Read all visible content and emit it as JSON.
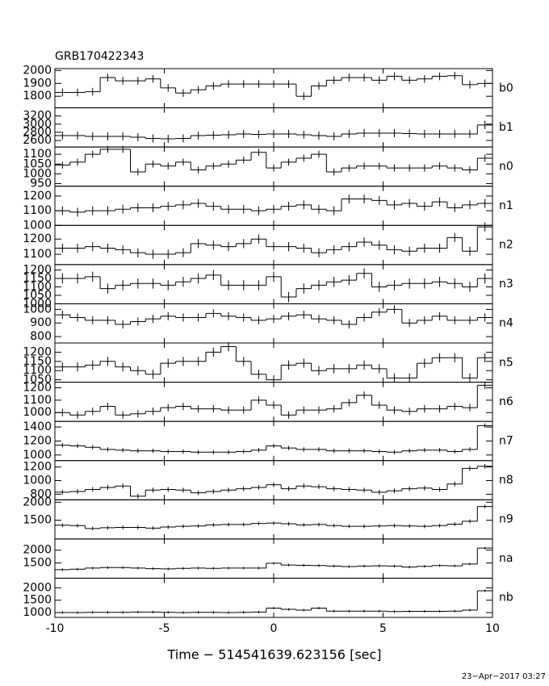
{
  "chart_data": {
    "type": "step",
    "title": "GRB170422343",
    "x_label": "Time − 514541639.623156 [sec]",
    "xlim": [
      -10,
      10
    ],
    "xticks": [
      -10,
      -5,
      0,
      5,
      10
    ],
    "bins": [
      -10,
      -9.31,
      -8.62,
      -7.93,
      -7.24,
      -6.55,
      -5.86,
      -5.17,
      -4.48,
      -3.79,
      -3.1,
      -2.41,
      -1.72,
      -1.03,
      -0.34,
      0.34,
      1.03,
      1.72,
      2.41,
      3.1,
      3.79,
      4.48,
      5.17,
      5.86,
      6.55,
      7.24,
      7.93,
      8.62,
      9.31,
      10
    ],
    "panels": [
      {
        "name": "b0",
        "ylim": [
          1710,
          2015
        ],
        "yticks": [
          1800,
          1900,
          2000
        ],
        "error": 30,
        "values": [
          1830,
          1830,
          1835,
          1945,
          1920,
          1920,
          1935,
          1865,
          1825,
          1850,
          1880,
          1895,
          1895,
          1895,
          1895,
          1895,
          1800,
          1880,
          1925,
          1945,
          1945,
          1925,
          1955,
          1925,
          1935,
          1955,
          1960,
          1890,
          1900
        ]
      },
      {
        "name": "b1",
        "ylim": [
          2440,
          3400
        ],
        "yticks": [
          2600,
          2800,
          3000,
          3200
        ],
        "error": 100,
        "values": [
          2720,
          2720,
          2700,
          2700,
          2700,
          2680,
          2650,
          2640,
          2650,
          2720,
          2730,
          2740,
          2760,
          2750,
          2760,
          2760,
          2740,
          2720,
          2700,
          2760,
          2780,
          2780,
          2780,
          2770,
          2760,
          2760,
          2760,
          2760,
          2980
        ]
      },
      {
        "name": "n0",
        "ylim": [
          937,
          1137
        ],
        "yticks": [
          950,
          1000,
          1050,
          1100
        ],
        "error": 18,
        "values": [
          1045,
          1060,
          1100,
          1125,
          1125,
          1010,
          1050,
          1040,
          1060,
          1020,
          1040,
          1050,
          1070,
          1110,
          1030,
          1060,
          1080,
          1100,
          1010,
          1030,
          1040,
          1040,
          1030,
          1030,
          1030,
          1040,
          1030,
          1020,
          1080
        ]
      },
      {
        "name": "n1",
        "ylim": [
          1000,
          1267
        ],
        "yticks": [
          1000,
          1100,
          1200
        ],
        "error": 30,
        "values": [
          1100,
          1090,
          1100,
          1100,
          1110,
          1120,
          1120,
          1130,
          1140,
          1150,
          1130,
          1110,
          1110,
          1100,
          1110,
          1130,
          1140,
          1110,
          1100,
          1180,
          1180,
          1170,
          1140,
          1150,
          1130,
          1160,
          1120,
          1140,
          1150
        ]
      },
      {
        "name": "n2",
        "ylim": [
          1032,
          1290
        ],
        "yticks": [
          1100,
          1200
        ],
        "error": 30,
        "values": [
          1140,
          1140,
          1150,
          1140,
          1130,
          1110,
          1100,
          1100,
          1110,
          1170,
          1160,
          1150,
          1170,
          1200,
          1150,
          1150,
          1140,
          1110,
          1130,
          1150,
          1180,
          1160,
          1130,
          1120,
          1140,
          1140,
          1210,
          1120,
          1280
        ]
      },
      {
        "name": "n3",
        "ylim": [
          1000,
          1232
        ],
        "yticks": [
          1000,
          1050,
          1100,
          1150,
          1200
        ],
        "error": 30,
        "values": [
          1150,
          1150,
          1160,
          1090,
          1110,
          1120,
          1120,
          1110,
          1130,
          1150,
          1170,
          1110,
          1110,
          1110,
          1160,
          1040,
          1090,
          1110,
          1130,
          1140,
          1180,
          1100,
          1110,
          1120,
          1120,
          1130,
          1120,
          1100,
          1150
        ]
      },
      {
        "name": "n4",
        "ylim": [
          753,
          1041
        ],
        "yticks": [
          800,
          900,
          1000
        ],
        "error": 30,
        "values": [
          960,
          940,
          920,
          920,
          890,
          910,
          930,
          950,
          940,
          940,
          970,
          950,
          940,
          920,
          930,
          950,
          960,
          930,
          920,
          890,
          940,
          980,
          1000,
          900,
          920,
          950,
          920,
          920,
          940
        ]
      },
      {
        "name": "n5",
        "ylim": [
          1037,
          1250
        ],
        "yticks": [
          1050,
          1100,
          1150,
          1200
        ],
        "error": 25,
        "values": [
          1120,
          1120,
          1130,
          1150,
          1120,
          1100,
          1080,
          1140,
          1150,
          1150,
          1200,
          1230,
          1150,
          1080,
          1050,
          1130,
          1140,
          1100,
          1110,
          1110,
          1130,
          1110,
          1060,
          1060,
          1140,
          1170,
          1170,
          1060,
          1170
        ]
      },
      {
        "name": "n6",
        "ylim": [
          929,
          1245
        ],
        "yticks": [
          1000,
          1100,
          1200
        ],
        "error": 30,
        "values": [
          1000,
          980,
          1010,
          1050,
          980,
          990,
          1010,
          1040,
          1050,
          1030,
          1030,
          1020,
          1020,
          1100,
          1060,
          980,
          1020,
          1020,
          1030,
          1080,
          1140,
          1060,
          1020,
          1010,
          1030,
          1030,
          1050,
          1040,
          1220
        ]
      },
      {
        "name": "n7",
        "ylim": [
          920,
          1480
        ],
        "yticks": [
          1000,
          1200,
          1400
        ],
        "error": 30,
        "values": [
          1140,
          1130,
          1110,
          1080,
          1070,
          1060,
          1060,
          1050,
          1050,
          1040,
          1040,
          1040,
          1050,
          1070,
          1130,
          1100,
          1080,
          1080,
          1060,
          1060,
          1060,
          1050,
          1040,
          1060,
          1070,
          1070,
          1050,
          1080,
          1420
        ]
      },
      {
        "name": "n8",
        "ylim": [
          718,
          1294
        ],
        "yticks": [
          800,
          1000,
          1200
        ],
        "error": 35,
        "values": [
          830,
          840,
          870,
          900,
          920,
          770,
          860,
          870,
          860,
          820,
          840,
          860,
          880,
          900,
          940,
          880,
          920,
          910,
          880,
          870,
          860,
          830,
          850,
          880,
          890,
          870,
          950,
          1180,
          1210
        ]
      },
      {
        "name": "n9",
        "ylim": [
          977,
          2068
        ],
        "yticks": [
          1500,
          2000
        ],
        "error": 50,
        "values": [
          1360,
          1350,
          1270,
          1290,
          1300,
          1300,
          1280,
          1310,
          1330,
          1340,
          1370,
          1380,
          1380,
          1410,
          1420,
          1400,
          1370,
          1380,
          1350,
          1330,
          1330,
          1340,
          1350,
          1340,
          1330,
          1350,
          1390,
          1470,
          1880
        ]
      },
      {
        "name": "na",
        "ylim": [
          906,
          2437
        ],
        "yticks": [
          1500,
          2000
        ],
        "error": 50,
        "values": [
          1240,
          1260,
          1300,
          1320,
          1320,
          1300,
          1280,
          1270,
          1290,
          1300,
          1290,
          1300,
          1300,
          1300,
          1490,
          1420,
          1410,
          1400,
          1380,
          1360,
          1380,
          1390,
          1380,
          1340,
          1370,
          1400,
          1390,
          1460,
          2080
        ]
      },
      {
        "name": "nb",
        "ylim": [
          806,
          2387
        ],
        "yticks": [
          1000,
          1500,
          2000
        ],
        "error": 50,
        "values": [
          1000,
          1000,
          1010,
          1010,
          1010,
          1020,
          1020,
          1010,
          1000,
          1010,
          1010,
          1000,
          1010,
          1020,
          1180,
          1130,
          1100,
          1180,
          1060,
          1060,
          1060,
          1060,
          1040,
          1050,
          1050,
          1050,
          1060,
          1100,
          1880
        ]
      }
    ]
  },
  "timestamp": "23−Apr−2017 03:27"
}
